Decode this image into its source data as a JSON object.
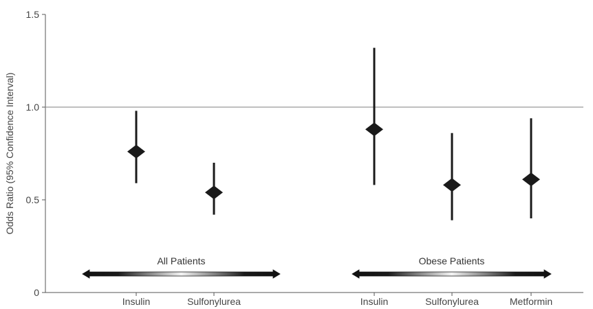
{
  "chart_data": {
    "type": "scatter",
    "title": "",
    "xlabel": "",
    "ylabel": "Odds Ratio (95% Confidence Interval)",
    "ylim": [
      0,
      1.5
    ],
    "yticks": [
      0,
      0.5,
      1.0,
      1.5
    ],
    "ytick_labels": [
      "0",
      "0.5",
      "1.0",
      "1.5"
    ],
    "reference_line": 1.0,
    "grid": false,
    "marker": "diamond",
    "groups": [
      {
        "label": "All Patients"
      },
      {
        "label": "Obese Patients"
      }
    ],
    "points": [
      {
        "category": "Insulin",
        "group": "All Patients",
        "estimate": 0.76,
        "ci_low": 0.59,
        "ci_high": 0.98
      },
      {
        "category": "Sulfonylurea",
        "group": "All Patients",
        "estimate": 0.54,
        "ci_low": 0.42,
        "ci_high": 0.7
      },
      {
        "category": "Insulin",
        "group": "Obese Patients",
        "estimate": 0.88,
        "ci_low": 0.58,
        "ci_high": 1.32
      },
      {
        "category": "Sulfonylurea",
        "group": "Obese Patients",
        "estimate": 0.58,
        "ci_low": 0.39,
        "ci_high": 0.86
      },
      {
        "category": "Metformin",
        "group": "Obese Patients",
        "estimate": 0.61,
        "ci_low": 0.4,
        "ci_high": 0.94
      }
    ]
  }
}
